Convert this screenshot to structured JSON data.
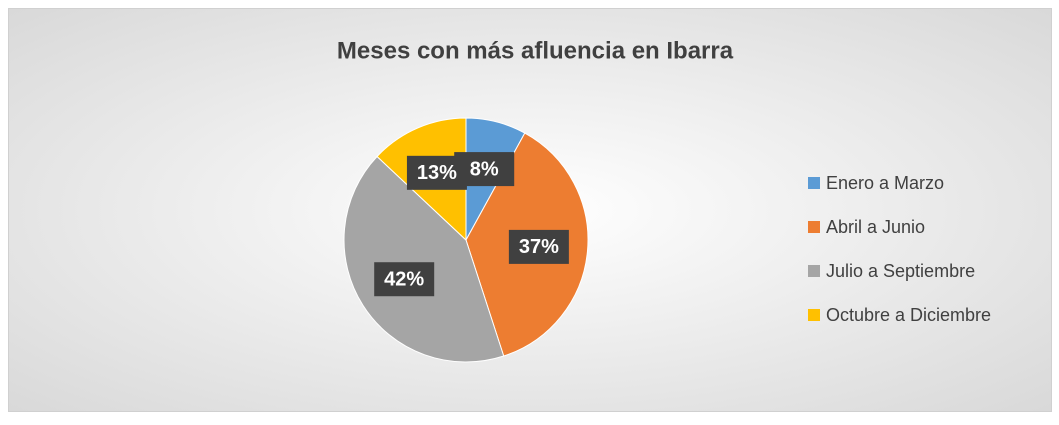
{
  "chart_data": {
    "type": "pie",
    "title": "Meses con más afluencia en Ibarra",
    "categories": [
      "Enero a Marzo",
      "Abril a Junio",
      "Julio a Septiembre",
      "Octubre a Diciembre"
    ],
    "values": [
      8,
      37,
      42,
      13
    ],
    "value_labels": [
      "8%",
      "37%",
      "42%",
      "13%"
    ],
    "colors": [
      "#5b9bd5",
      "#ed7d31",
      "#a5a5a5",
      "#ffc000"
    ],
    "legend": "right"
  }
}
